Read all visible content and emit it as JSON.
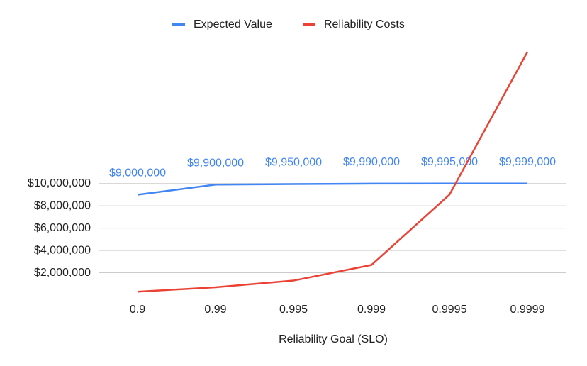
{
  "chart_data": {
    "type": "line",
    "x_label": "Reliability Goal (SLO)",
    "categories": [
      "0.9",
      "0.99",
      "0.995",
      "0.999",
      "0.9995",
      "0.9999"
    ],
    "series": [
      {
        "name": "Expected Value",
        "color": "#4285f4",
        "values": [
          9000000,
          9900000,
          9950000,
          9990000,
          9995000,
          9999000
        ],
        "value_labels": [
          "$9,000,000",
          "$9,900,000",
          "$9,950,000",
          "$9,990,000",
          "$9,995,000",
          "$9,999,000"
        ]
      },
      {
        "name": "Reliability Costs",
        "color": "#ea4335",
        "values": [
          300000,
          700000,
          1300000,
          2700000,
          9000000,
          21800000
        ]
      }
    ],
    "ylim": [
      0,
      22000000
    ],
    "yticks": [
      {
        "value": 2000000,
        "label": "$2,000,000"
      },
      {
        "value": 4000000,
        "label": "$4,000,000"
      },
      {
        "value": 6000000,
        "label": "$6,000,000"
      },
      {
        "value": 8000000,
        "label": "$8,000,000"
      },
      {
        "value": 10000000,
        "label": "$10,000,000"
      }
    ],
    "grid": true
  }
}
